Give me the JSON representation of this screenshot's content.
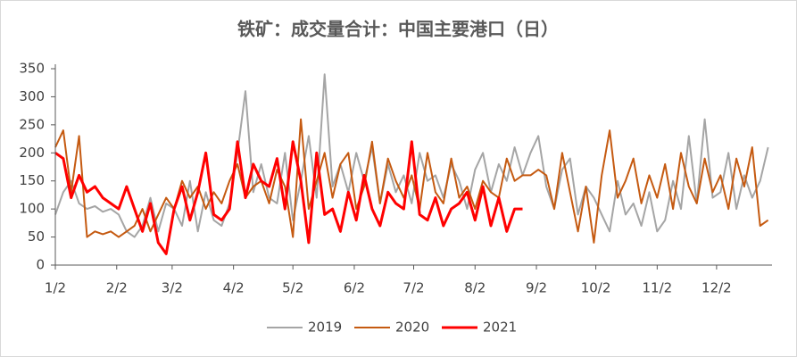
{
  "chart_data": {
    "type": "line",
    "title": "铁矿：成交量合计：中国主要港口（日）",
    "x": [
      0,
      4,
      8,
      12,
      16,
      20,
      24,
      28,
      32,
      36,
      40,
      44,
      48,
      52,
      56,
      60,
      64,
      68,
      72,
      76,
      80,
      84,
      88,
      92,
      96,
      100,
      104,
      108,
      112,
      116,
      120,
      124,
      128,
      132,
      136,
      140,
      144,
      148,
      152,
      156,
      160,
      164,
      168,
      172,
      176,
      180,
      184,
      188,
      192,
      196,
      200,
      204,
      208,
      212,
      216,
      220,
      224,
      228,
      232,
      236,
      240,
      244,
      248,
      252,
      256,
      260,
      264,
      268,
      272,
      276,
      280,
      284,
      288,
      292,
      296,
      300,
      304,
      308,
      312,
      316,
      320,
      324,
      328,
      332,
      336,
      340,
      344,
      348,
      352,
      356,
      360
    ],
    "series": [
      {
        "name": "2019",
        "color": "#a5a5a5",
        "width": 2,
        "values": [
          90,
          130,
          150,
          110,
          100,
          105,
          95,
          100,
          90,
          60,
          50,
          70,
          120,
          60,
          110,
          100,
          70,
          150,
          60,
          130,
          80,
          70,
          110,
          200,
          310,
          130,
          180,
          120,
          110,
          200,
          80,
          150,
          230,
          120,
          340,
          140,
          180,
          130,
          200,
          150,
          210,
          110,
          180,
          130,
          160,
          110,
          200,
          150,
          160,
          120,
          180,
          150,
          100,
          170,
          200,
          130,
          180,
          150,
          210,
          160,
          200,
          230,
          140,
          100,
          170,
          190,
          90,
          140,
          120,
          90,
          60,
          150,
          90,
          110,
          70,
          130,
          60,
          80,
          150,
          100,
          230,
          110,
          260,
          120,
          130,
          200,
          100,
          160,
          120,
          150,
          210
        ]
      },
      {
        "name": "2020",
        "color": "#c55a11",
        "width": 2,
        "values": [
          210,
          240,
          130,
          230,
          50,
          60,
          55,
          60,
          50,
          60,
          70,
          100,
          60,
          90,
          120,
          100,
          150,
          120,
          140,
          100,
          130,
          110,
          150,
          180,
          120,
          140,
          150,
          110,
          170,
          140,
          50,
          260,
          100,
          150,
          200,
          120,
          180,
          200,
          100,
          140,
          220,
          110,
          190,
          150,
          120,
          160,
          100,
          200,
          130,
          110,
          190,
          120,
          140,
          100,
          150,
          130,
          120,
          190,
          150,
          160,
          160,
          170,
          160,
          100,
          200,
          130,
          60,
          140,
          40,
          160,
          240,
          120,
          150,
          190,
          110,
          160,
          120,
          180,
          100,
          200,
          140,
          110,
          190,
          130,
          160,
          100,
          190,
          140,
          210,
          70,
          80
        ]
      },
      {
        "name": "2021",
        "color": "#ff0000",
        "width": 3,
        "values": [
          200,
          190,
          120,
          160,
          130,
          140,
          120,
          110,
          100,
          140,
          100,
          60,
          110,
          40,
          20,
          100,
          140,
          80,
          130,
          200,
          90,
          80,
          100,
          220,
          120,
          180,
          150,
          140,
          190,
          100,
          220,
          150,
          40,
          200,
          90,
          100,
          60,
          130,
          80,
          160,
          100,
          70,
          130,
          110,
          100,
          220,
          90,
          80,
          120,
          70,
          100,
          110,
          130,
          80,
          140,
          70,
          120,
          60,
          100,
          100,
          null,
          null,
          null,
          null,
          null,
          null,
          null,
          null,
          null,
          null,
          null,
          null,
          null,
          null,
          null,
          null,
          null,
          null,
          null,
          null,
          null,
          null,
          null,
          null,
          null,
          null,
          null,
          null,
          null,
          null,
          null
        ]
      }
    ],
    "xlim": [
      0,
      362
    ],
    "xticks": [
      {
        "value": 0,
        "label": "1/2"
      },
      {
        "value": 31,
        "label": "2/2"
      },
      {
        "value": 59,
        "label": "3/2"
      },
      {
        "value": 90,
        "label": "4/2"
      },
      {
        "value": 120,
        "label": "5/2"
      },
      {
        "value": 151,
        "label": "6/2"
      },
      {
        "value": 181,
        "label": "7/2"
      },
      {
        "value": 212,
        "label": "8/2"
      },
      {
        "value": 243,
        "label": "9/2"
      },
      {
        "value": 273,
        "label": "10/2"
      },
      {
        "value": 304,
        "label": "11/2"
      },
      {
        "value": 334,
        "label": "12/2"
      }
    ],
    "ylim": [
      0,
      350
    ],
    "yticks": [
      0,
      50,
      100,
      150,
      200,
      250,
      300,
      350
    ],
    "grid": false,
    "legend": "bottom"
  }
}
